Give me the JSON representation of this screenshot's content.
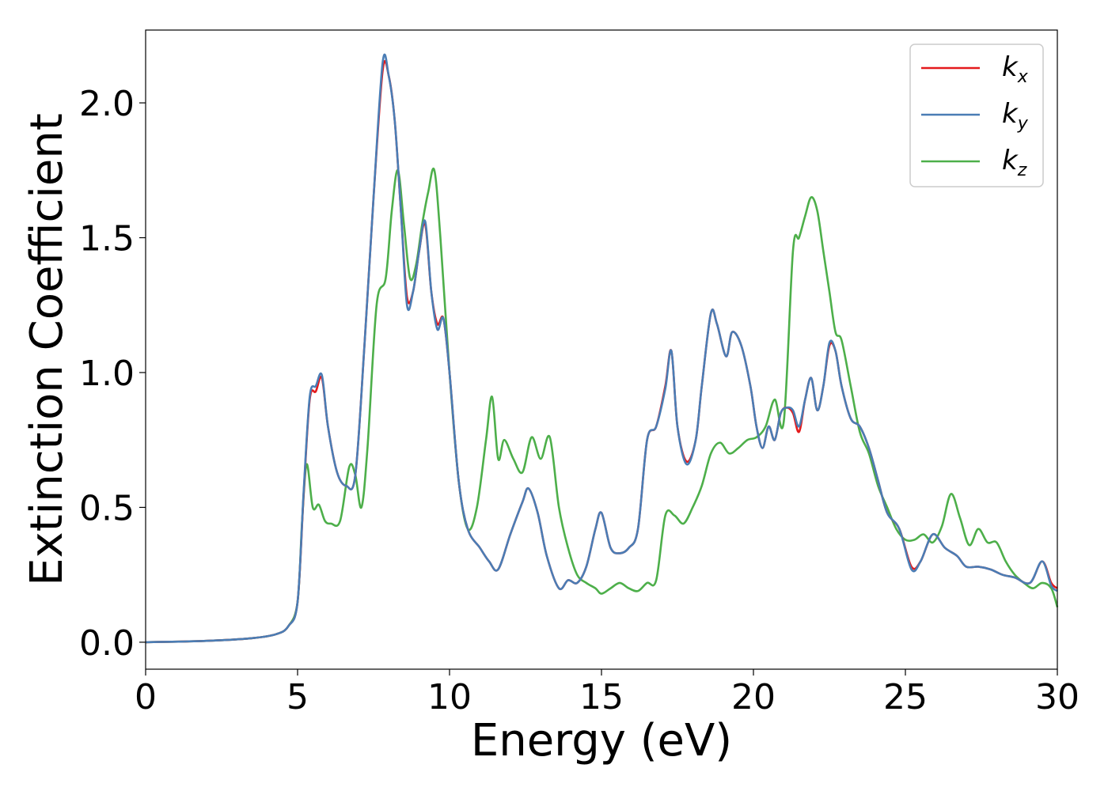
{
  "chart_data": {
    "type": "line",
    "title": "",
    "xlabel": "Energy (eV)",
    "ylabel": "Extinction Coefficient",
    "xlim": [
      0,
      30
    ],
    "ylim": [
      -0.1,
      2.27
    ],
    "xticks": [
      0,
      5,
      10,
      15,
      20,
      25,
      30
    ],
    "xtick_labels": [
      "0",
      "5",
      "10",
      "15",
      "20",
      "25",
      "30"
    ],
    "yticks": [
      0.0,
      0.5,
      1.0,
      1.5,
      2.0
    ],
    "ytick_labels": [
      "0.0",
      "0.5",
      "1.0",
      "1.5",
      "2.0"
    ],
    "grid": false,
    "legend_position": "top-right",
    "series": [
      {
        "name": "k_x",
        "legend_base": "k",
        "legend_sub": "x",
        "color": "#e41a1c",
        "x": [
          0,
          2,
          3.5,
          4.3,
          4.7,
          5.0,
          5.2,
          5.4,
          5.6,
          5.8,
          6.0,
          6.3,
          6.6,
          6.9,
          7.2,
          7.5,
          7.8,
          8.0,
          8.2,
          8.4,
          8.6,
          8.8,
          9.0,
          9.2,
          9.4,
          9.6,
          9.8,
          10.0,
          10.3,
          10.6,
          11.0,
          11.3,
          11.6,
          12.0,
          12.4,
          12.6,
          12.9,
          13.2,
          13.6,
          13.9,
          14.2,
          14.5,
          14.8,
          15.0,
          15.3,
          15.6,
          15.9,
          16.2,
          16.5,
          16.8,
          17.1,
          17.3,
          17.5,
          17.8,
          18.1,
          18.3,
          18.6,
          18.8,
          19.1,
          19.3,
          19.6,
          19.9,
          20.1,
          20.3,
          20.5,
          20.7,
          20.9,
          21.1,
          21.3,
          21.5,
          21.7,
          21.9,
          22.1,
          22.3,
          22.5,
          22.7,
          22.9,
          23.2,
          23.5,
          23.8,
          24.1,
          24.4,
          24.8,
          25.2,
          25.5,
          25.9,
          26.3,
          26.7,
          27.0,
          27.4,
          27.8,
          28.2,
          28.6,
          29.1,
          29.5,
          29.8,
          30.0
        ],
        "values": [
          0.0,
          0.005,
          0.015,
          0.03,
          0.06,
          0.15,
          0.55,
          0.9,
          0.93,
          0.98,
          0.8,
          0.63,
          0.58,
          0.62,
          1.1,
          1.65,
          2.12,
          2.1,
          1.93,
          1.6,
          1.28,
          1.3,
          1.45,
          1.55,
          1.3,
          1.18,
          1.2,
          1.0,
          0.6,
          0.42,
          0.35,
          0.3,
          0.27,
          0.4,
          0.52,
          0.57,
          0.48,
          0.32,
          0.2,
          0.23,
          0.22,
          0.28,
          0.42,
          0.48,
          0.35,
          0.33,
          0.35,
          0.42,
          0.75,
          0.8,
          0.95,
          1.08,
          0.8,
          0.67,
          0.75,
          0.95,
          1.22,
          1.18,
          1.06,
          1.15,
          1.1,
          0.95,
          0.8,
          0.72,
          0.8,
          0.75,
          0.85,
          0.87,
          0.85,
          0.78,
          0.9,
          0.98,
          0.86,
          0.95,
          1.1,
          1.08,
          0.95,
          0.83,
          0.8,
          0.72,
          0.6,
          0.48,
          0.42,
          0.28,
          0.3,
          0.4,
          0.35,
          0.32,
          0.28,
          0.28,
          0.27,
          0.25,
          0.24,
          0.22,
          0.3,
          0.22,
          0.2
        ]
      },
      {
        "name": "k_y",
        "legend_base": "k",
        "legend_sub": "y",
        "color": "#4a7db5",
        "x": [
          0,
          2,
          3.5,
          4.3,
          4.7,
          5.0,
          5.2,
          5.4,
          5.6,
          5.8,
          6.0,
          6.3,
          6.6,
          6.9,
          7.2,
          7.5,
          7.8,
          8.0,
          8.2,
          8.4,
          8.6,
          8.8,
          9.0,
          9.2,
          9.4,
          9.6,
          9.8,
          10.0,
          10.3,
          10.6,
          11.0,
          11.3,
          11.6,
          12.0,
          12.4,
          12.6,
          12.9,
          13.2,
          13.6,
          13.9,
          14.2,
          14.5,
          14.8,
          15.0,
          15.3,
          15.6,
          15.9,
          16.2,
          16.5,
          16.8,
          17.1,
          17.3,
          17.5,
          17.8,
          18.1,
          18.3,
          18.6,
          18.8,
          19.1,
          19.3,
          19.6,
          19.9,
          20.1,
          20.3,
          20.5,
          20.7,
          20.9,
          21.1,
          21.3,
          21.5,
          21.7,
          21.9,
          22.1,
          22.3,
          22.5,
          22.7,
          22.9,
          23.2,
          23.5,
          23.8,
          24.1,
          24.4,
          24.8,
          25.2,
          25.5,
          25.9,
          26.3,
          26.7,
          27.0,
          27.4,
          27.8,
          28.2,
          28.6,
          29.1,
          29.5,
          29.8,
          30.0
        ],
        "values": [
          0.0,
          0.005,
          0.015,
          0.03,
          0.06,
          0.15,
          0.56,
          0.91,
          0.95,
          0.99,
          0.8,
          0.63,
          0.58,
          0.62,
          1.1,
          1.65,
          2.15,
          2.1,
          1.93,
          1.6,
          1.25,
          1.3,
          1.45,
          1.56,
          1.3,
          1.16,
          1.2,
          1.0,
          0.6,
          0.42,
          0.35,
          0.3,
          0.27,
          0.4,
          0.52,
          0.57,
          0.48,
          0.32,
          0.2,
          0.23,
          0.22,
          0.28,
          0.42,
          0.48,
          0.35,
          0.33,
          0.35,
          0.42,
          0.75,
          0.8,
          0.94,
          1.08,
          0.8,
          0.66,
          0.75,
          0.95,
          1.22,
          1.18,
          1.06,
          1.15,
          1.1,
          0.95,
          0.8,
          0.72,
          0.8,
          0.75,
          0.85,
          0.87,
          0.86,
          0.8,
          0.9,
          0.98,
          0.86,
          0.95,
          1.11,
          1.08,
          0.95,
          0.83,
          0.8,
          0.72,
          0.6,
          0.48,
          0.42,
          0.27,
          0.3,
          0.4,
          0.35,
          0.32,
          0.28,
          0.28,
          0.27,
          0.25,
          0.24,
          0.22,
          0.3,
          0.21,
          0.19
        ]
      },
      {
        "name": "k_z",
        "legend_base": "k",
        "legend_sub": "z",
        "color": "#4daf4a",
        "x": [
          0,
          2,
          3.5,
          4.3,
          4.7,
          5.0,
          5.15,
          5.3,
          5.5,
          5.7,
          5.9,
          6.1,
          6.4,
          6.7,
          6.9,
          7.1,
          7.3,
          7.6,
          7.9,
          8.1,
          8.3,
          8.5,
          8.7,
          8.9,
          9.1,
          9.3,
          9.5,
          9.7,
          10.0,
          10.3,
          10.6,
          10.9,
          11.2,
          11.4,
          11.6,
          11.8,
          12.1,
          12.4,
          12.7,
          13.0,
          13.3,
          13.6,
          13.9,
          14.2,
          14.5,
          14.8,
          15.0,
          15.3,
          15.6,
          15.9,
          16.2,
          16.5,
          16.8,
          17.1,
          17.4,
          17.7,
          18.0,
          18.3,
          18.6,
          18.9,
          19.2,
          19.5,
          19.8,
          20.1,
          20.4,
          20.7,
          21.0,
          21.3,
          21.5,
          21.7,
          21.9,
          22.1,
          22.3,
          22.5,
          22.7,
          22.9,
          23.2,
          23.5,
          23.8,
          24.1,
          24.4,
          24.7,
          25.0,
          25.3,
          25.6,
          25.9,
          26.2,
          26.5,
          26.8,
          27.1,
          27.4,
          27.7,
          28.0,
          28.3,
          28.6,
          28.9,
          29.2,
          29.5,
          29.8,
          30.0
        ],
        "values": [
          0.0,
          0.005,
          0.015,
          0.03,
          0.06,
          0.15,
          0.45,
          0.66,
          0.5,
          0.51,
          0.45,
          0.44,
          0.45,
          0.65,
          0.62,
          0.5,
          0.72,
          1.25,
          1.35,
          1.6,
          1.75,
          1.55,
          1.35,
          1.4,
          1.55,
          1.67,
          1.75,
          1.5,
          1.0,
          0.6,
          0.42,
          0.5,
          0.75,
          0.91,
          0.68,
          0.75,
          0.68,
          0.63,
          0.76,
          0.68,
          0.76,
          0.5,
          0.35,
          0.25,
          0.22,
          0.2,
          0.18,
          0.2,
          0.22,
          0.2,
          0.19,
          0.22,
          0.23,
          0.47,
          0.47,
          0.44,
          0.5,
          0.58,
          0.7,
          0.74,
          0.7,
          0.72,
          0.75,
          0.76,
          0.8,
          0.9,
          0.82,
          1.45,
          1.5,
          1.58,
          1.65,
          1.6,
          1.45,
          1.3,
          1.15,
          1.12,
          0.95,
          0.78,
          0.7,
          0.58,
          0.5,
          0.42,
          0.38,
          0.38,
          0.4,
          0.37,
          0.43,
          0.55,
          0.46,
          0.36,
          0.42,
          0.37,
          0.37,
          0.3,
          0.25,
          0.22,
          0.2,
          0.22,
          0.2,
          0.13
        ]
      }
    ]
  }
}
